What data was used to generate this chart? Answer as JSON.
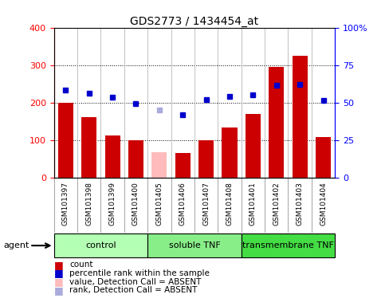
{
  "title": "GDS2773 / 1434454_at",
  "samples": [
    "GSM101397",
    "GSM101398",
    "GSM101399",
    "GSM101400",
    "GSM101405",
    "GSM101406",
    "GSM101407",
    "GSM101408",
    "GSM101401",
    "GSM101402",
    "GSM101403",
    "GSM101404"
  ],
  "counts": [
    200,
    160,
    112,
    100,
    0,
    65,
    100,
    133,
    170,
    295,
    325,
    108
  ],
  "absent_counts": [
    0,
    0,
    0,
    0,
    68,
    0,
    0,
    0,
    0,
    0,
    0,
    0
  ],
  "ranks": [
    233,
    225,
    215,
    197,
    0,
    168,
    207,
    217,
    220,
    247,
    248,
    205
  ],
  "absent_ranks": [
    0,
    0,
    0,
    0,
    180,
    0,
    0,
    0,
    0,
    0,
    0,
    0
  ],
  "is_absent": [
    false,
    false,
    false,
    false,
    true,
    false,
    false,
    false,
    false,
    false,
    false,
    false
  ],
  "groups": [
    {
      "label": "control",
      "start": 0,
      "end": 3,
      "color": "#b3ffb3"
    },
    {
      "label": "soluble TNF",
      "start": 4,
      "end": 7,
      "color": "#88ee88"
    },
    {
      "label": "transmembrane TNF",
      "start": 8,
      "end": 11,
      "color": "#44dd44"
    }
  ],
  "ylim_left": [
    0,
    400
  ],
  "ylim_right": [
    0,
    100
  ],
  "yticks_left": [
    0,
    100,
    200,
    300,
    400
  ],
  "yticks_right": [
    0,
    25,
    50,
    75,
    100
  ],
  "ytick_labels_right": [
    "0",
    "25",
    "50",
    "75",
    "100%"
  ],
  "bar_color": "#cc0000",
  "absent_bar_color": "#ffbbbb",
  "rank_color": "#0000cc",
  "absent_rank_color": "#aaaadd",
  "label_bg": "#cccccc",
  "legend_items": [
    {
      "label": "count",
      "color": "#cc0000"
    },
    {
      "label": "percentile rank within the sample",
      "color": "#0000cc"
    },
    {
      "label": "value, Detection Call = ABSENT",
      "color": "#ffbbbb"
    },
    {
      "label": "rank, Detection Call = ABSENT",
      "color": "#aaaadd"
    }
  ]
}
